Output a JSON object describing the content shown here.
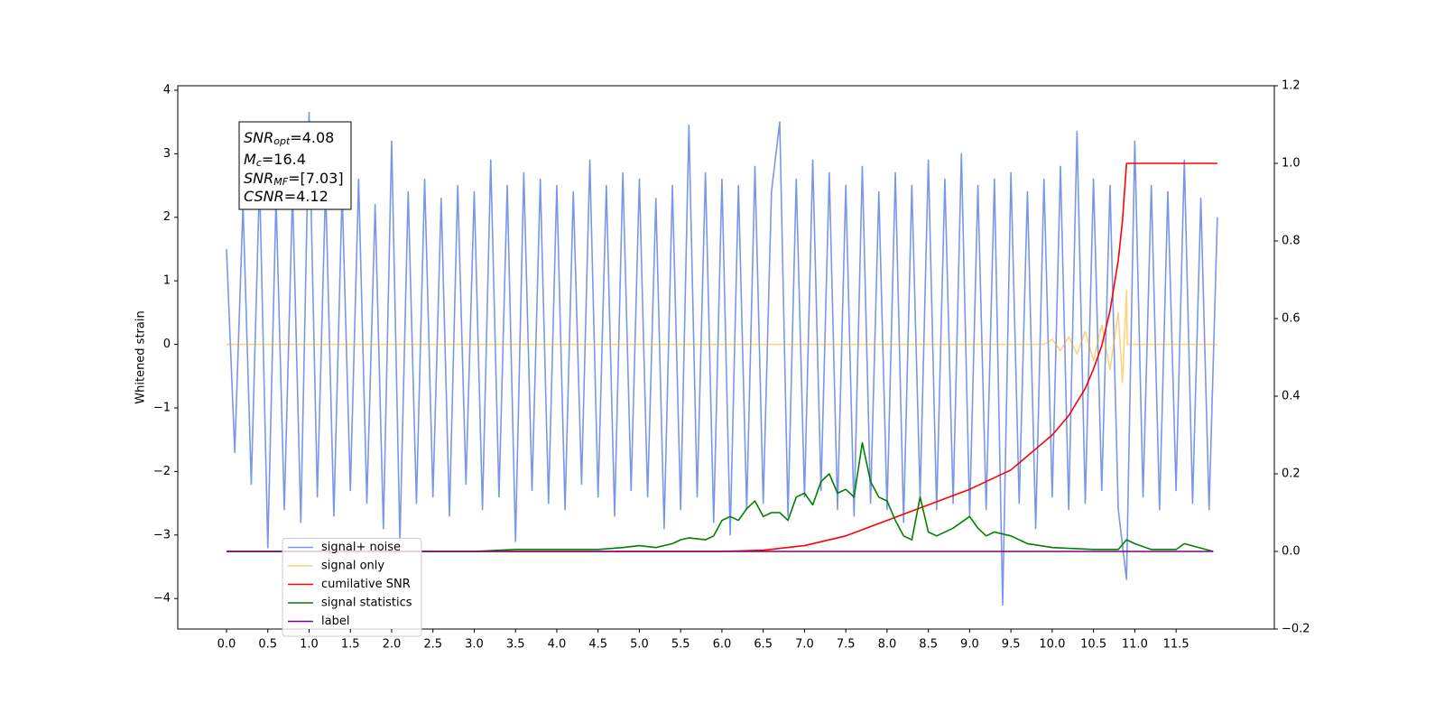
{
  "chart_data": {
    "type": "line",
    "ylabel": "Whitened strain",
    "xlim": [
      -0.59,
      12.69
    ],
    "ylim": [
      -4.48,
      4.07
    ],
    "y2lim": [
      -0.2,
      1.2
    ],
    "xticks": [
      {
        "value": 0,
        "label": "0.0"
      },
      0.5,
      {
        "value": 1,
        "label": "1.0"
      },
      1.5,
      {
        "value": 2,
        "label": "2.0"
      },
      2.5,
      {
        "value": 3,
        "label": "3.0"
      },
      3.5,
      {
        "value": 4,
        "label": "4.0"
      },
      4.5,
      {
        "value": 5,
        "label": "5.0"
      },
      5.5,
      {
        "value": 6,
        "label": "6.0"
      },
      6.5,
      {
        "value": 7,
        "label": "7.0"
      },
      7.5,
      {
        "value": 8,
        "label": "8.0"
      },
      8.5,
      {
        "value": 9,
        "label": "9.0"
      },
      9.5,
      {
        "value": 10,
        "label": "10.0"
      },
      10.5,
      {
        "value": 11,
        "label": "11.0"
      },
      11.5
    ],
    "yticks": [
      {
        "value": -4,
        "label": "−4"
      },
      {
        "value": -3,
        "label": "−3"
      },
      {
        "value": -2,
        "label": "−2"
      },
      {
        "value": -1,
        "label": "−1"
      },
      0,
      1,
      2,
      3,
      4
    ],
    "y2ticks": [
      {
        "value": -0.2,
        "label": "−0.2"
      },
      {
        "value": 0,
        "label": "0.0"
      },
      0.2,
      0.4,
      0.6,
      0.8,
      {
        "value": 1,
        "label": "1.0"
      },
      1.2
    ],
    "legend": "lower left",
    "annotations": [
      {
        "symbol": "SNR",
        "subscript": "opt",
        "text": "=4.08"
      },
      {
        "symbol": "M",
        "subscript": "c",
        "text": "=16.4"
      },
      {
        "symbol": "SNR",
        "subscript": "MF",
        "text": "=[7.03]"
      },
      {
        "symbol": "CSNR",
        "text": "=4.12"
      }
    ],
    "series": [
      {
        "name": "signal+ noise",
        "color": "#4169e1",
        "alpha": 0.7,
        "x": [
          0,
          0.1,
          0.2,
          0.3,
          0.4,
          0.5,
          0.6,
          0.7,
          0.8,
          0.9,
          1,
          1.1,
          1.2,
          1.3,
          1.4,
          1.5,
          1.6,
          1.7,
          1.8,
          1.9,
          2,
          2.1,
          2.2,
          2.3,
          2.4,
          2.5,
          2.6,
          2.7,
          2.8,
          2.9,
          3,
          3.1,
          3.2,
          3.3,
          3.4,
          3.5,
          3.6,
          3.7,
          3.8,
          3.9,
          4,
          4.1,
          4.2,
          4.3,
          4.4,
          4.5,
          4.6,
          4.7,
          4.8,
          4.9,
          5,
          5.1,
          5.2,
          5.3,
          5.4,
          5.5,
          5.6,
          5.7,
          5.8,
          5.9,
          6,
          6.1,
          6.2,
          6.3,
          6.4,
          6.5,
          6.6,
          6.7,
          6.8,
          6.9,
          7,
          7.1,
          7.2,
          7.3,
          7.4,
          7.5,
          7.6,
          7.7,
          7.8,
          7.9,
          8,
          8.1,
          8.2,
          8.3,
          8.4,
          8.5,
          8.6,
          8.7,
          8.8,
          8.9,
          9,
          9.1,
          9.2,
          9.3,
          9.4,
          9.5,
          9.6,
          9.7,
          9.8,
          9.9,
          10,
          10.1,
          10.2,
          10.3,
          10.4,
          10.5,
          10.6,
          10.7,
          10.8,
          10.9,
          11,
          11.1,
          11.2,
          11.3,
          11.4,
          11.5,
          11.6,
          11.7,
          11.8,
          11.9,
          12
        ],
        "values": [
          1.5,
          -1.7,
          2.2,
          -2.2,
          2.6,
          -3.2,
          2.3,
          -2.6,
          2.4,
          -2.8,
          3.65,
          -2.4,
          2.5,
          -2.7,
          2.4,
          -2.3,
          2.6,
          -2.5,
          2.2,
          -2.9,
          3.2,
          -3.1,
          2.4,
          -2.5,
          2.6,
          -2.4,
          2.3,
          -2.7,
          2.5,
          -2.2,
          2.4,
          -2.6,
          2.9,
          -2.4,
          2.5,
          -3.1,
          2.7,
          -2.3,
          2.6,
          -2.5,
          2.5,
          -2.6,
          2.4,
          -2.2,
          2.9,
          -2.4,
          2.5,
          -2.7,
          2.7,
          -2.3,
          2.6,
          -2.4,
          2.3,
          -2.9,
          2.5,
          -2.6,
          3.45,
          -2.4,
          2.7,
          -2.8,
          2.6,
          -3.0,
          2.5,
          -2.6,
          2.8,
          -2.5,
          2.4,
          3.5,
          -2.7,
          2.6,
          -2.4,
          2.9,
          -2.3,
          2.7,
          -2.6,
          2.5,
          -2.7,
          2.8,
          -2.5,
          2.4,
          -2.6,
          2.7,
          -2.8,
          2.5,
          -2.4,
          2.9,
          -2.6,
          2.6,
          -2.5,
          3.0,
          -2.7,
          2.5,
          -2.6,
          2.6,
          -4.1,
          2.7,
          -2.5,
          2.4,
          -2.9,
          2.6,
          -2.4,
          2.8,
          -2.6,
          3.35,
          -2.5,
          2.6,
          -2.3,
          2.5,
          -2.6,
          -3.7,
          3.2,
          -2.4,
          2.5,
          -2.6,
          2.4,
          -2.3,
          2.9,
          -2.5,
          2.3,
          -2.6,
          2.0
        ]
      },
      {
        "name": "signal only",
        "color": "#ffa500",
        "alpha": 0.5,
        "x": [
          0,
          9.9,
          10,
          10.1,
          10.2,
          10.3,
          10.4,
          10.5,
          10.6,
          10.7,
          10.8,
          10.85,
          10.9,
          10.91,
          12
        ],
        "values": [
          0,
          0,
          0.08,
          -0.1,
          0.12,
          -0.15,
          0.2,
          -0.25,
          0.3,
          -0.4,
          0.5,
          -0.6,
          0.85,
          0,
          0
        ]
      },
      {
        "name": "cumilative SNR",
        "color": "#ff0000",
        "axis": "y2",
        "x": [
          0,
          6,
          6.5,
          7,
          7.5,
          8,
          8.5,
          9,
          9.5,
          10,
          10.2,
          10.4,
          10.5,
          10.6,
          10.7,
          10.8,
          10.85,
          10.9,
          12
        ],
        "values": [
          0,
          0,
          0.003,
          0.015,
          0.04,
          0.08,
          0.12,
          0.16,
          0.21,
          0.3,
          0.35,
          0.42,
          0.47,
          0.53,
          0.62,
          0.75,
          0.85,
          1.0,
          1.0
        ]
      },
      {
        "name": "signal statistics",
        "color": "#008000",
        "axis": "y2",
        "x": [
          0,
          1,
          2,
          3,
          3.5,
          4,
          4.5,
          4.8,
          5,
          5.2,
          5.4,
          5.5,
          5.6,
          5.8,
          5.9,
          6,
          6.1,
          6.2,
          6.3,
          6.4,
          6.5,
          6.6,
          6.7,
          6.8,
          6.9,
          7,
          7.1,
          7.2,
          7.3,
          7.4,
          7.5,
          7.6,
          7.7,
          7.8,
          7.9,
          8,
          8.1,
          8.2,
          8.3,
          8.4,
          8.5,
          8.6,
          8.8,
          9,
          9.1,
          9.2,
          9.3,
          9.5,
          9.7,
          10,
          10.5,
          10.8,
          10.9,
          11,
          11.2,
          11.5,
          11.6,
          11.95
        ],
        "values": [
          0,
          0,
          0,
          0,
          0.005,
          0.005,
          0.005,
          0.01,
          0.015,
          0.01,
          0.02,
          0.03,
          0.035,
          0.03,
          0.04,
          0.08,
          0.09,
          0.08,
          0.11,
          0.13,
          0.09,
          0.1,
          0.1,
          0.08,
          0.14,
          0.15,
          0.12,
          0.18,
          0.2,
          0.15,
          0.16,
          0.14,
          0.28,
          0.18,
          0.14,
          0.13,
          0.08,
          0.04,
          0.03,
          0.14,
          0.05,
          0.04,
          0.06,
          0.09,
          0.06,
          0.04,
          0.05,
          0.04,
          0.02,
          0.01,
          0.005,
          0.005,
          0.03,
          0.02,
          0.005,
          0.005,
          0.02,
          0
        ]
      },
      {
        "name": "label",
        "color": "#800080",
        "axis": "y2",
        "x": [
          0,
          11.95
        ],
        "values": [
          0,
          0
        ]
      }
    ]
  }
}
